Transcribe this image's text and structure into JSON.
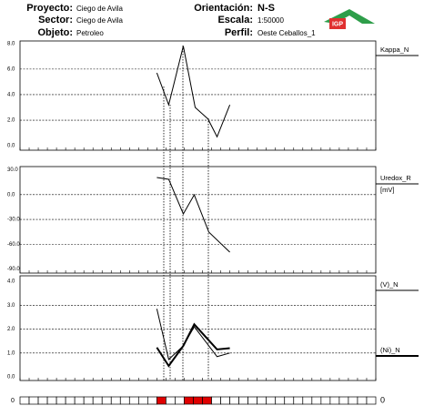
{
  "header": {
    "proyecto_label": "Proyecto:",
    "proyecto": "Ciego de Avila",
    "sector_label": "Sector:",
    "sector": "Ciego de Avila",
    "objeto_label": "Objeto:",
    "objeto": "Petroleo",
    "orientacion_label": "Orientación:",
    "orientacion": "N-S",
    "escala_label": "Escala:",
    "escala": "1:50000",
    "perfil_label": "Perfil:",
    "perfil": "Oeste Ceballos_1",
    "logo": "IGP"
  },
  "chart_data": [
    {
      "type": "line",
      "xlim": [
        0,
        39
      ],
      "ylim": [
        -0.35,
        8.2
      ],
      "yticks": [
        {
          "value": 8,
          "label": "8.0"
        },
        {
          "value": 6,
          "label": "6.0"
        },
        {
          "value": 4,
          "label": "4.0"
        },
        {
          "value": 2,
          "label": "2.0"
        },
        {
          "value": 0,
          "label": "0.0"
        }
      ],
      "series": [
        {
          "name": "Kappa_N",
          "color": "#000000",
          "width": 1,
          "x": [
            15,
            16.3,
            17.9,
            19.2,
            20.6,
            21.6,
            23
          ],
          "values": [
            5.7,
            3.2,
            7.8,
            3.0,
            2.1,
            0.7,
            3.2
          ]
        }
      ]
    },
    {
      "type": "line",
      "xlim": [
        0,
        39
      ],
      "ylim": [
        -95,
        34
      ],
      "y_unit": "[mV]",
      "yticks": [
        {
          "value": 30,
          "label": "30.0"
        },
        {
          "value": 0,
          "label": "0.0"
        },
        {
          "value": -30,
          "label": "-30.0"
        },
        {
          "value": -60,
          "label": "-60.0"
        },
        {
          "value": -90,
          "label": "-90.0"
        }
      ],
      "series": [
        {
          "name": "Uredox_R",
          "color": "#000000",
          "width": 1,
          "x": [
            15,
            16.3,
            17.9,
            19.1,
            20.7,
            23
          ],
          "values": [
            20.8,
            18.6,
            -23.3,
            -0.2,
            -45.4,
            -69.6
          ]
        }
      ]
    },
    {
      "type": "line",
      "xlim": [
        0,
        39
      ],
      "ylim": [
        -0.15,
        4.23
      ],
      "yticks": [
        {
          "value": 4,
          "label": "4.0"
        },
        {
          "value": 3,
          "label": "3.0"
        },
        {
          "value": 2,
          "label": "2.0"
        },
        {
          "value": 1,
          "label": "1.0"
        },
        {
          "value": 0,
          "label": "0.0"
        }
      ],
      "series": [
        {
          "name": "(V)_N",
          "color": "#000000",
          "width": 1,
          "x": [
            15,
            16.3,
            17.9,
            19.1,
            21.6,
            23
          ],
          "values": [
            2.85,
            0.73,
            1.3,
            2.1,
            0.85,
            1.0
          ]
        },
        {
          "name": "(Ni)_N",
          "color": "#000000",
          "width": 2,
          "x": [
            15,
            16.3,
            17.9,
            19.1,
            21.6,
            23
          ],
          "values": [
            1.23,
            0.46,
            1.3,
            2.2,
            1.15,
            1.2
          ]
        }
      ]
    }
  ],
  "strip": {
    "left_label": "0",
    "right_label": "0",
    "cell_count": 39,
    "highlighted": [
      15,
      18,
      19,
      20
    ],
    "highlight_color": "#e00000"
  }
}
